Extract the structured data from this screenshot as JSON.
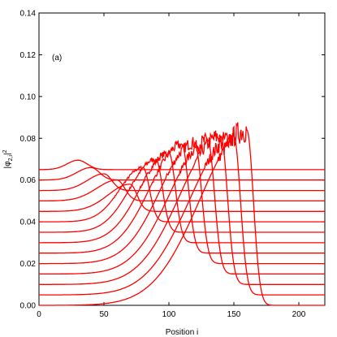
{
  "chart_data": {
    "type": "line",
    "title": "",
    "annotation": "(a)",
    "xlabel": "Position i",
    "ylabel_main": "|φ",
    "ylabel_sub": "2,i",
    "ylabel_tail": "|",
    "ylabel_sup": "2",
    "xlim": [
      0,
      220
    ],
    "ylim": [
      0,
      0.14
    ],
    "xticks": [
      0,
      50,
      100,
      150,
      200
    ],
    "xtick_labels": [
      "0",
      "50",
      "100",
      "150",
      "200"
    ],
    "yticks": [
      0,
      0.02,
      0.04,
      0.06,
      0.08,
      0.1,
      0.12,
      0.14
    ],
    "ytick_labels": [
      "0.00",
      "0.02",
      "0.04",
      "0.06",
      "0.08",
      "0.10",
      "0.12",
      "0.14"
    ],
    "grid": false,
    "line_color": "#ff0000",
    "series": [
      {
        "offset": 0.065,
        "peak_x": 30,
        "peak_height": 0.0045,
        "width": 7
      },
      {
        "offset": 0.06,
        "peak_x": 40,
        "peak_height": 0.006,
        "width": 6.5
      },
      {
        "offset": 0.055,
        "peak_x": 50,
        "peak_height": 0.008,
        "width": 6
      },
      {
        "offset": 0.05,
        "peak_x": 60,
        "peak_height": 0.01,
        "width": 6
      },
      {
        "offset": 0.045,
        "peak_x": 70,
        "peak_height": 0.013,
        "width": 5.5
      },
      {
        "offset": 0.04,
        "peak_x": 80,
        "peak_height": 0.026,
        "width": 5
      },
      {
        "offset": 0.035,
        "peak_x": 90,
        "peak_height": 0.035,
        "width": 5
      },
      {
        "offset": 0.03,
        "peak_x": 100,
        "peak_height": 0.043,
        "width": 5
      },
      {
        "offset": 0.025,
        "peak_x": 110,
        "peak_height": 0.052,
        "width": 5
      },
      {
        "offset": 0.02,
        "peak_x": 120,
        "peak_height": 0.058,
        "width": 5
      },
      {
        "offset": 0.015,
        "peak_x": 130,
        "peak_height": 0.064,
        "width": 5
      },
      {
        "offset": 0.01,
        "peak_x": 140,
        "peak_height": 0.071,
        "width": 5
      },
      {
        "offset": 0.005,
        "peak_x": 150,
        "peak_height": 0.076,
        "width": 5
      },
      {
        "offset": 0.0,
        "peak_x": 160,
        "peak_height": 0.084,
        "width": 5
      }
    ]
  }
}
